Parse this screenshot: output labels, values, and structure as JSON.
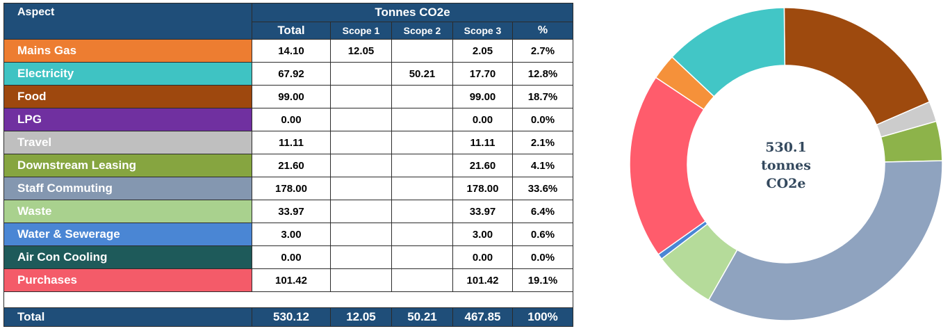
{
  "table": {
    "aspect_header": "Aspect",
    "group_header": "Tonnes CO2e",
    "columns": [
      "Total",
      "Scope 1",
      "Scope 2",
      "Scope 3",
      "%"
    ],
    "rows": [
      {
        "aspect": "Mains Gas",
        "color": "#ed7d31",
        "total": "14.10",
        "scope1": "12.05",
        "scope2": "",
        "scope3": "2.05",
        "pct": "2.7%"
      },
      {
        "aspect": "Electricity",
        "color": "#3fc3c3",
        "total": "67.92",
        "scope1": "",
        "scope2": "50.21",
        "scope3": "17.70",
        "pct": "12.8%"
      },
      {
        "aspect": "Food",
        "color": "#9e480e",
        "total": "99.00",
        "scope1": "",
        "scope2": "",
        "scope3": "99.00",
        "pct": "18.7%"
      },
      {
        "aspect": "LPG",
        "color": "#7030a0",
        "total": "0.00",
        "scope1": "",
        "scope2": "",
        "scope3": "0.00",
        "pct": "0.0%"
      },
      {
        "aspect": "Travel",
        "color": "#bfbfbf",
        "total": "11.11",
        "scope1": "",
        "scope2": "",
        "scope3": "11.11",
        "pct": "2.1%"
      },
      {
        "aspect": "Downstream Leasing",
        "color": "#86a540",
        "total": "21.60",
        "scope1": "",
        "scope2": "",
        "scope3": "21.60",
        "pct": "4.1%"
      },
      {
        "aspect": "Staff Commuting",
        "color": "#8497b0",
        "total": "178.00",
        "scope1": "",
        "scope2": "",
        "scope3": "178.00",
        "pct": "33.6%"
      },
      {
        "aspect": "Waste",
        "color": "#a9d18e",
        "total": "33.97",
        "scope1": "",
        "scope2": "",
        "scope3": "33.97",
        "pct": "6.4%"
      },
      {
        "aspect": "Water & Sewerage",
        "color": "#4a86d4",
        "total": "3.00",
        "scope1": "",
        "scope2": "",
        "scope3": "3.00",
        "pct": "0.6%"
      },
      {
        "aspect": "Air Con Cooling",
        "color": "#1e5a5a",
        "total": "0.00",
        "scope1": "",
        "scope2": "",
        "scope3": "0.00",
        "pct": "0.0%"
      },
      {
        "aspect": "Purchases",
        "color": "#f45b69",
        "total": "101.42",
        "scope1": "",
        "scope2": "",
        "scope3": "101.42",
        "pct": "19.1%"
      }
    ],
    "total_row": {
      "label": "Total",
      "total": "530.12",
      "scope1": "12.05",
      "scope2": "50.21",
      "scope3": "467.85",
      "pct": "100%"
    }
  },
  "chart_data": {
    "type": "pie",
    "variant": "donut",
    "center_label": [
      "530.1",
      "tonnes",
      "CO2e"
    ],
    "slices": [
      {
        "label": "Food",
        "value": 99.0,
        "color": "#9e4a0e"
      },
      {
        "label": "Travel",
        "value": 11.11,
        "color": "#cccccc"
      },
      {
        "label": "Downstream Leasing",
        "value": 21.6,
        "color": "#8db34a"
      },
      {
        "label": "Staff Commuting",
        "value": 178.0,
        "color": "#8fa3bf"
      },
      {
        "label": "Waste",
        "value": 33.97,
        "color": "#b5db9a"
      },
      {
        "label": "Air Con Cooling",
        "value": 0.0,
        "color": "#1e5a5a"
      },
      {
        "label": "Water & Sewerage",
        "value": 3.0,
        "color": "#4a86d4"
      },
      {
        "label": "LPG",
        "value": 0.0,
        "color": "#7030a0"
      },
      {
        "label": "Purchases",
        "value": 101.42,
        "color": "#ff5c6c"
      },
      {
        "label": "Mains Gas",
        "value": 14.1,
        "color": "#f5913a"
      },
      {
        "label": "Electricity",
        "value": 67.92,
        "color": "#42c6c6"
      }
    ]
  }
}
